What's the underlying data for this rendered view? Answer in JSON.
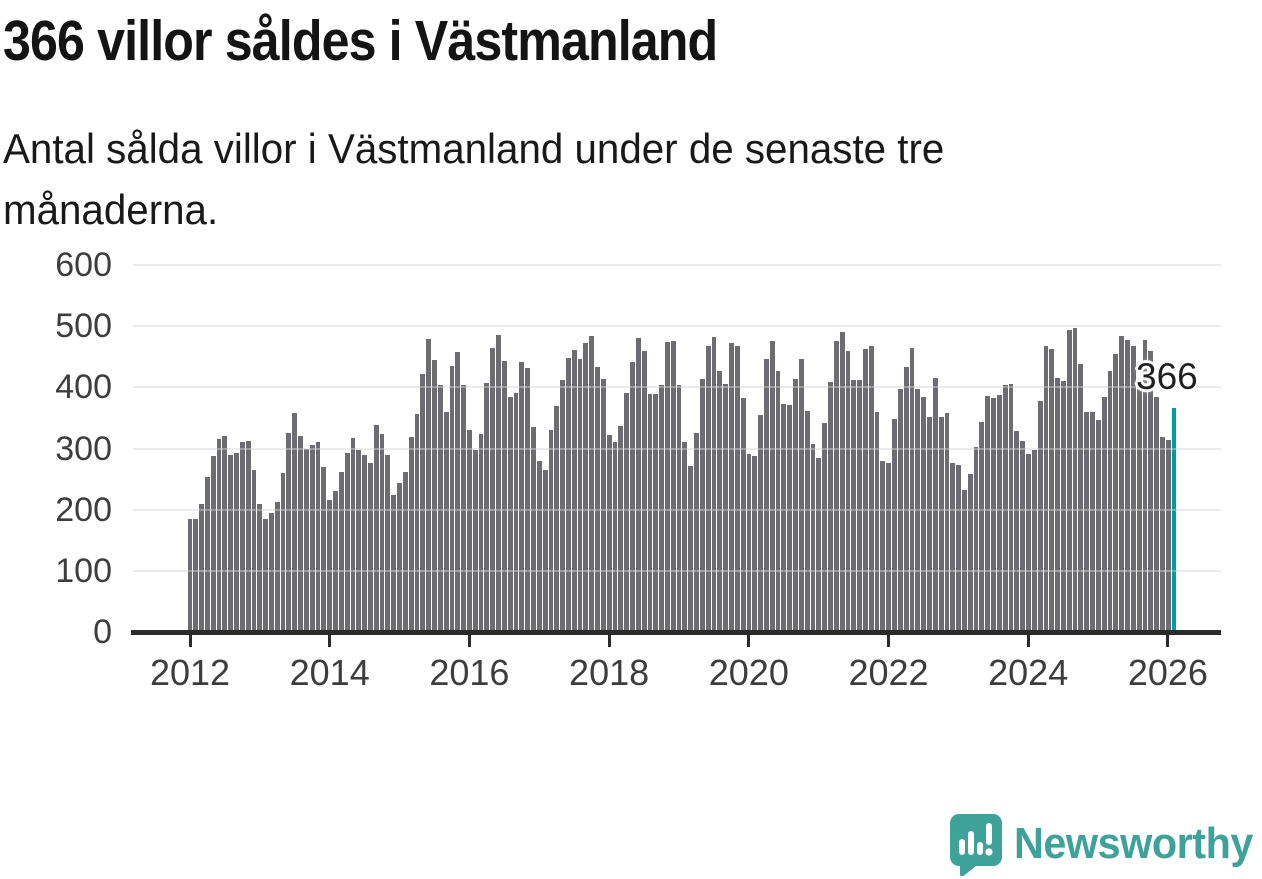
{
  "header": {
    "title": "366 villor såldes i Västmanland",
    "subtitle_lines": [
      "Antal sålda villor i Västmanland under de senaste tre",
      "månaderna."
    ]
  },
  "annotation": {
    "value_label": "366"
  },
  "footer": {
    "brand": "Newsworthy"
  },
  "colors": {
    "bar": "#6c6c72",
    "highlight": "#009da1",
    "axis": "#2b2b2b",
    "grid": "#e2e2e2",
    "brand_teal": "#3fa29a",
    "title_text": "#141414",
    "tick_text": "#3d3d3d"
  },
  "chart_data": {
    "type": "bar",
    "title": "366 villor såldes i Västmanland",
    "subtitle": "Antal sålda villor i Västmanland under de senaste tre månaderna.",
    "x_start": "2012-01",
    "x_end": "2026-02",
    "x_frequency": "monthly",
    "x_tick_labels": [
      "2012",
      "2014",
      "2016",
      "2018",
      "2020",
      "2022",
      "2024",
      "2026"
    ],
    "y_ticks": [
      0,
      100,
      200,
      300,
      400,
      500,
      600
    ],
    "ylim": [
      0,
      600
    ],
    "grid": "horizontal",
    "legend": "none",
    "highlight_last_bar": true,
    "last_value": 366,
    "annotation_text": "366",
    "values": [
      185,
      185,
      210,
      253,
      288,
      315,
      320,
      290,
      293,
      310,
      313,
      265,
      210,
      185,
      195,
      212,
      260,
      325,
      358,
      320,
      300,
      305,
      310,
      270,
      215,
      231,
      262,
      293,
      317,
      297,
      289,
      277,
      338,
      324,
      290,
      224,
      243,
      262,
      319,
      357,
      421,
      479,
      444,
      404,
      360,
      435,
      457,
      404,
      331,
      297,
      323,
      407,
      465,
      485,
      443,
      385,
      390,
      442,
      431,
      335,
      280,
      265,
      330,
      369,
      412,
      448,
      461,
      446,
      473,
      484,
      433,
      414,
      322,
      310,
      337,
      391,
      441,
      480,
      459,
      389,
      389,
      403,
      474,
      475,
      403,
      311,
      272,
      326,
      414,
      468,
      483,
      427,
      405,
      472,
      468,
      382,
      291,
      287,
      355,
      447,
      475,
      427,
      373,
      371,
      413,
      447,
      362,
      308,
      284,
      342,
      409,
      476,
      491,
      460,
      412,
      412,
      463,
      468,
      360,
      280,
      276,
      349,
      398,
      434,
      464,
      398,
      385,
      351,
      416,
      351,
      358,
      277,
      273,
      232,
      258,
      303,
      344,
      386,
      383,
      388,
      403,
      405,
      328,
      312,
      291,
      297,
      378,
      468,
      462,
      415,
      411,
      494,
      497,
      438,
      360,
      360,
      346,
      384,
      427,
      455,
      484,
      478,
      468,
      404,
      477,
      460,
      384,
      318,
      314,
      366
    ]
  }
}
